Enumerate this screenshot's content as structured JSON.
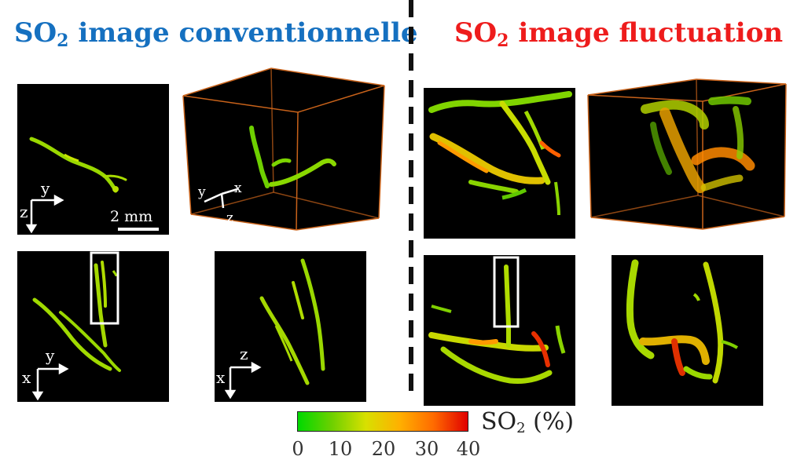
{
  "titles": {
    "left": {
      "prefix": "SO",
      "sub": "2",
      "suffix": " image conventionnelle",
      "color": "#1570c0"
    },
    "right": {
      "prefix": "SO",
      "sub": "2",
      "suffix": " image fluctuation",
      "color": "#ee1c1c"
    }
  },
  "axes": {
    "y": "y",
    "z": "z",
    "x": "x"
  },
  "scale_bar": "2 mm",
  "colorbar": {
    "label_prefix": "SO",
    "label_sub": "2",
    "label_suffix": " (%)",
    "ticks": [
      "0",
      "10",
      "20",
      "30",
      "40"
    ],
    "colors": [
      "#00d900",
      "#6ed000",
      "#d8e000",
      "#ffb000",
      "#ff6a00",
      "#e00000"
    ]
  },
  "panel_labels": {
    "conv_yz": "conventional-yz-projection",
    "conv_3d": "conventional-3d-volume",
    "conv_xy": "conventional-xy-projection",
    "conv_xz": "conventional-xz-projection",
    "fluc_yz": "fluctuation-yz-projection",
    "fluc_3d": "fluctuation-3d-volume",
    "fluc_xy": "fluctuation-xy-projection",
    "fluc_xz": "fluctuation-xz-projection"
  }
}
